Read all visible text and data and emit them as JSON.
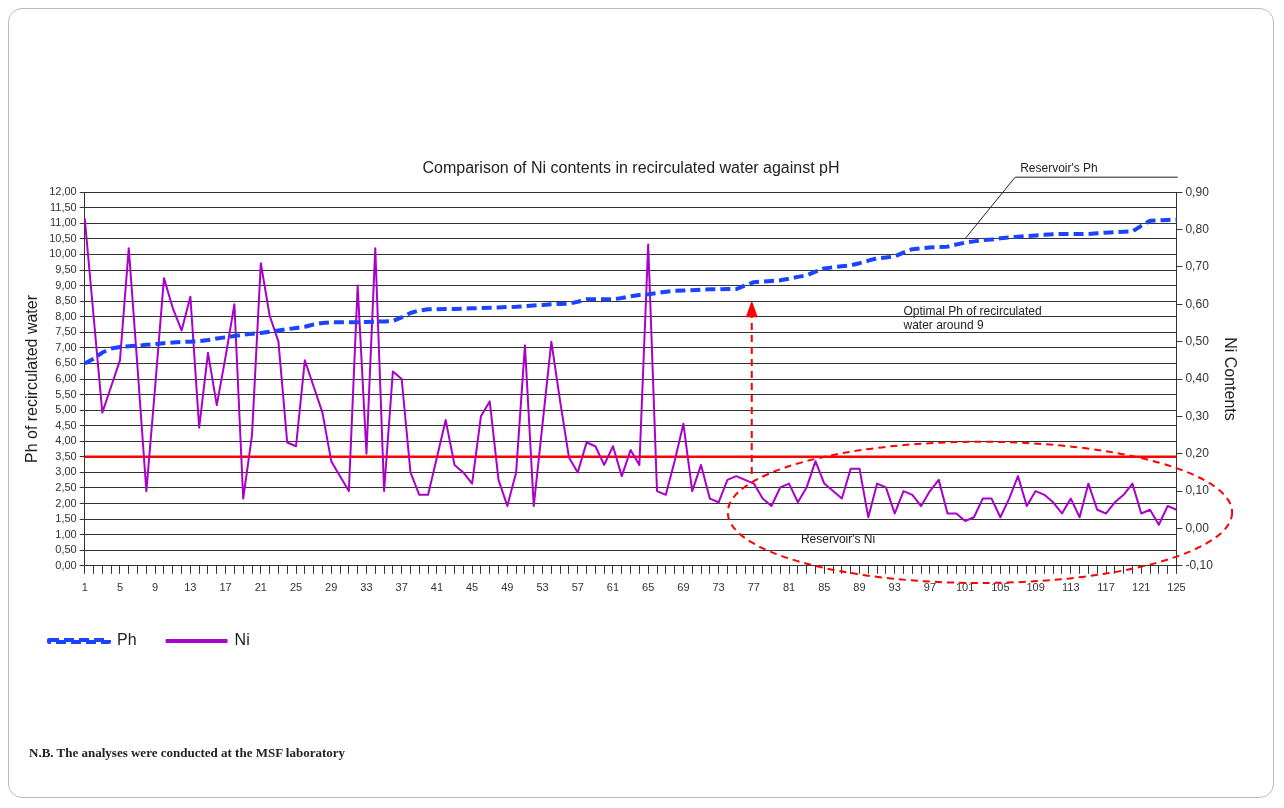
{
  "chart_data": {
    "type": "line",
    "title": "Comparison of Ni contents in recirculated water against pH",
    "ylabel": "Ph of recirculated water",
    "y2label": "Ni Contents",
    "categories": [
      "1",
      null,
      null,
      null,
      "5",
      null,
      null,
      null,
      "9",
      null,
      null,
      null,
      "13",
      null,
      null,
      null,
      "17",
      null,
      null,
      null,
      "21",
      null,
      null,
      null,
      "25",
      null,
      null,
      null,
      "29",
      null,
      null,
      null,
      "33",
      null,
      null,
      null,
      "37",
      null,
      null,
      null,
      "41",
      null,
      null,
      null,
      "45",
      null,
      null,
      null,
      "49",
      null,
      null,
      null,
      "53",
      null,
      null,
      null,
      "57",
      null,
      null,
      null,
      "61",
      null,
      null,
      null,
      "65",
      null,
      null,
      null,
      "69",
      null,
      null,
      null,
      "73",
      null,
      null,
      null,
      "77",
      null,
      null,
      null,
      "81",
      null,
      null,
      null,
      "85",
      null,
      null,
      null,
      "89",
      null,
      null,
      null,
      "93",
      null,
      null,
      null,
      "97",
      null,
      null,
      null,
      "101",
      null,
      null,
      null,
      "105",
      null,
      null,
      null,
      "109",
      null,
      null,
      null,
      "113",
      null,
      null,
      null,
      "117",
      null,
      null,
      null,
      "121",
      null,
      null,
      null,
      "125"
    ],
    "series": [
      {
        "name": "Ph",
        "color": "#1a44ff",
        "line_style": "dashed",
        "values": [
          6.5,
          6.65,
          6.85,
          6.98,
          7.03,
          7.05,
          7.07,
          7.1,
          7.12,
          7.15,
          7.17,
          7.19,
          7.2,
          7.22,
          7.25,
          7.3,
          7.34,
          7.38,
          7.42,
          7.45,
          7.48,
          7.52,
          7.56,
          7.6,
          7.64,
          7.68,
          7.75,
          7.8,
          7.82,
          7.82,
          7.82,
          7.82,
          7.83,
          7.84,
          7.85,
          7.86,
          7.98,
          8.12,
          8.2,
          8.24,
          8.24,
          8.25,
          8.25,
          8.26,
          8.27,
          8.28,
          8.29,
          8.3,
          8.31,
          8.32,
          8.34,
          8.36,
          8.38,
          8.4,
          8.41,
          8.42,
          8.48,
          8.56,
          8.56,
          8.56,
          8.56,
          8.6,
          8.66,
          8.7,
          8.72,
          8.76,
          8.8,
          8.83,
          8.84,
          8.85,
          8.87,
          8.88,
          8.88,
          8.89,
          8.89,
          9.0,
          9.11,
          9.13,
          9.15,
          9.17,
          9.22,
          9.28,
          9.33,
          9.45,
          9.55,
          9.59,
          9.62,
          9.65,
          9.72,
          9.8,
          9.88,
          9.9,
          9.94,
          10.06,
          10.17,
          10.2,
          10.22,
          10.24,
          10.25,
          10.32,
          10.38,
          10.42,
          10.46,
          10.48,
          10.52,
          10.55,
          10.57,
          10.59,
          10.61,
          10.63,
          10.65,
          10.66,
          10.66,
          10.66,
          10.66,
          10.68,
          10.7,
          10.72,
          10.73,
          10.74,
          10.92,
          11.08,
          11.1,
          11.11,
          11.12
        ]
      },
      {
        "name": "Ni",
        "color": "#aa00cc",
        "axis": "y2",
        "line_style": "solid",
        "values": [
          0.83,
          0.57,
          0.31,
          0.38,
          0.45,
          0.75,
          0.43,
          0.1,
          0.38,
          0.67,
          0.59,
          0.53,
          0.62,
          0.27,
          0.47,
          0.33,
          0.46,
          0.6,
          0.08,
          0.25,
          0.71,
          0.57,
          0.5,
          0.23,
          0.22,
          0.45,
          0.38,
          0.31,
          0.18,
          0.14,
          0.1,
          0.65,
          0.2,
          0.75,
          0.1,
          0.42,
          0.4,
          0.15,
          0.09,
          0.09,
          0.19,
          0.29,
          0.17,
          0.15,
          0.12,
          0.3,
          0.34,
          0.13,
          0.06,
          0.15,
          0.49,
          0.06,
          0.28,
          0.5,
          0.34,
          0.19,
          0.15,
          0.23,
          0.22,
          0.17,
          0.22,
          0.14,
          0.21,
          0.17,
          0.76,
          0.1,
          0.09,
          0.18,
          0.28,
          0.1,
          0.17,
          0.08,
          0.07,
          0.13,
          0.14,
          0.13,
          0.12,
          0.08,
          0.06,
          0.11,
          0.12,
          0.07,
          0.11,
          0.18,
          0.12,
          0.1,
          0.08,
          0.16,
          0.16,
          0.03,
          0.12,
          0.11,
          0.04,
          0.1,
          0.09,
          0.06,
          0.1,
          0.13,
          0.04,
          0.04,
          0.02,
          0.03,
          0.08,
          0.08,
          0.03,
          0.08,
          0.14,
          0.06,
          0.1,
          0.09,
          0.07,
          0.04,
          0.08,
          0.03,
          0.12,
          0.05,
          0.04,
          0.07,
          0.09,
          0.12,
          0.04,
          0.05,
          0.01,
          0.06,
          0.05
        ]
      }
    ],
    "ylim": [
      0,
      12
    ],
    "yticks": [
      {
        "value": 0,
        "label": "0,00"
      },
      {
        "value": 0.5,
        "label": "0,50"
      },
      {
        "value": 1,
        "label": "1,00"
      },
      {
        "value": 1.5,
        "label": "1,50"
      },
      {
        "value": 2,
        "label": "2,00"
      },
      {
        "value": 2.5,
        "label": "2,50"
      },
      {
        "value": 3,
        "label": "3,00"
      },
      {
        "value": 3.5,
        "label": "3,50"
      },
      {
        "value": 4,
        "label": "4,00"
      },
      {
        "value": 4.5,
        "label": "4,50"
      },
      {
        "value": 5,
        "label": "5,00"
      },
      {
        "value": 5.5,
        "label": "5,50"
      },
      {
        "value": 6,
        "label": "6,00"
      },
      {
        "value": 6.5,
        "label": "6,50"
      },
      {
        "value": 7,
        "label": "7,00"
      },
      {
        "value": 7.5,
        "label": "7,50"
      },
      {
        "value": 8,
        "label": "8,00"
      },
      {
        "value": 8.5,
        "label": "8,50"
      },
      {
        "value": 9,
        "label": "9,00"
      },
      {
        "value": 9.5,
        "label": "9,50"
      },
      {
        "value": 10,
        "label": "10,00"
      },
      {
        "value": 10.5,
        "label": "10,50"
      },
      {
        "value": 11,
        "label": "11,00"
      },
      {
        "value": 11.5,
        "label": "11,50"
      },
      {
        "value": 12,
        "label": "12,00"
      }
    ],
    "y2lim": [
      -0.1,
      0.9
    ],
    "y2ticks": [
      {
        "value": -0.1,
        "label": "-0,10"
      },
      {
        "value": 0,
        "label": "0,00"
      },
      {
        "value": 0.1,
        "label": "0,10"
      },
      {
        "value": 0.2,
        "label": "0,20"
      },
      {
        "value": 0.3,
        "label": "0,30"
      },
      {
        "value": 0.4,
        "label": "0,40"
      },
      {
        "value": 0.5,
        "label": "0,50"
      },
      {
        "value": 0.6,
        "label": "0,60"
      },
      {
        "value": 0.7,
        "label": "0,70"
      },
      {
        "value": 0.8,
        "label": "0,80"
      },
      {
        "value": 0.9,
        "label": "0,90"
      }
    ],
    "ref_lines": [
      {
        "axis": "y",
        "value": 3.5,
        "color": "#ff0000",
        "line_style": "solid"
      }
    ],
    "annotations": [
      {
        "text": "Reservoir's Ph",
        "x": "101",
        "y": 10.38
      },
      "Optimal Ph of recirculated water around 9",
      "Reservoir's Ni",
      "N.B. The analyses were conducted at the MSF laboratory"
    ],
    "grid": "y",
    "legend": "bottom left",
    "marker": "none"
  }
}
